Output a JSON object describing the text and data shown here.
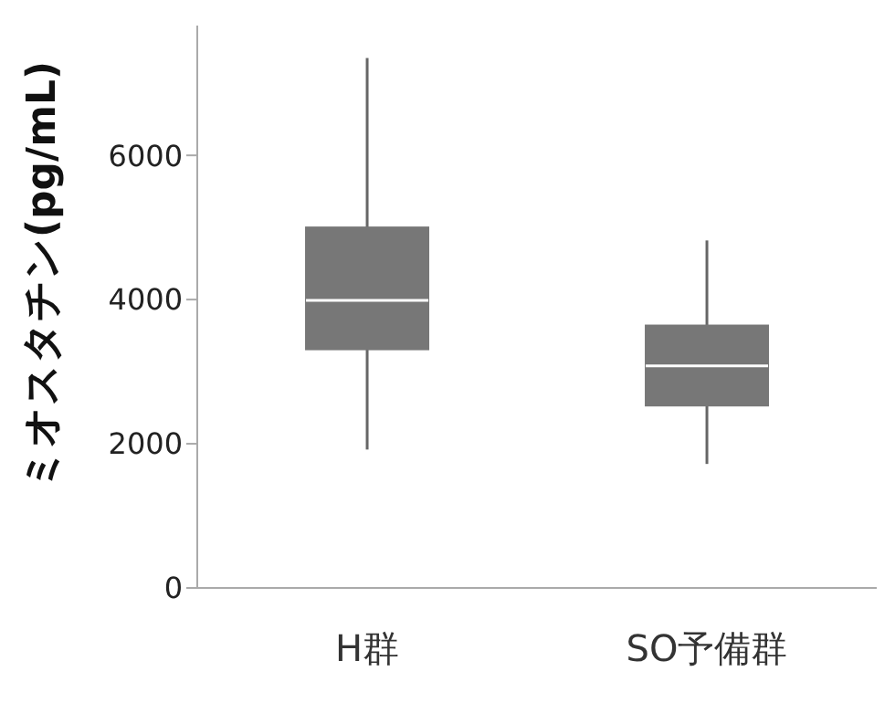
{
  "chart_data": {
    "type": "box",
    "ylabel": "ミオスタチン(pg/mL)",
    "categories": [
      "H群",
      "SO予備群"
    ],
    "color": "#777777",
    "boxes": [
      {
        "low": 1920,
        "q1": 3310,
        "median": 3990,
        "q3": 5000,
        "high": 7350
      },
      {
        "low": 1720,
        "q1": 2530,
        "median": 3080,
        "q3": 3640,
        "high": 4820
      }
    ],
    "ylim": [
      0,
      7800
    ],
    "yticks": [
      0,
      2000,
      4000,
      6000
    ],
    "grid": false
  }
}
